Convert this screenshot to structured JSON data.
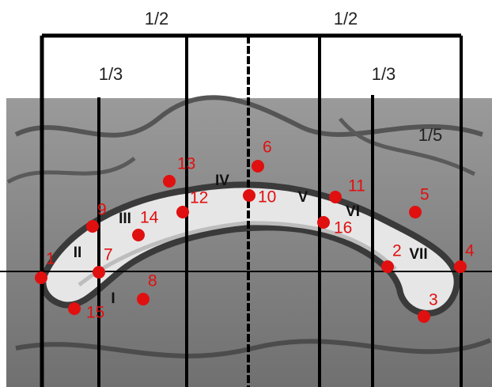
{
  "fractions": [
    "1/2",
    "1/2",
    "1/3",
    "1/3",
    "1/5"
  ],
  "points": [
    "1",
    "2",
    "3",
    "4",
    "5",
    "6",
    "7",
    "8",
    "9",
    "10",
    "11",
    "12",
    "13",
    "14",
    "15",
    "16"
  ],
  "regions": [
    "I",
    "II",
    "III",
    "IV",
    "V",
    "VI",
    "VII"
  ]
}
